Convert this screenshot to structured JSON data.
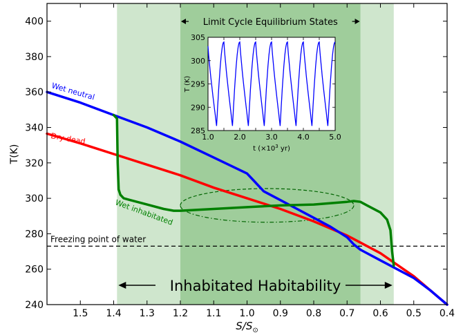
{
  "chart_data": [
    {
      "type": "line",
      "xlabel": "S/S",
      "xlabel_subscript": "⊙",
      "ylabel": "T(K)",
      "xlim": [
        1.6,
        0.4
      ],
      "ylim": [
        240,
        410
      ],
      "x_reversed": true,
      "xticks": [
        1.5,
        1.4,
        1.3,
        1.2,
        1.1,
        1.0,
        0.9,
        0.8,
        0.7,
        0.6,
        0.5,
        0.4
      ],
      "xtick_labels": [
        "1.5",
        "1.4",
        "1.3",
        "1.2",
        "1.1",
        "1.0",
        "0.9",
        "0.8",
        "0.7",
        "0.6",
        "0.5",
        "0.4"
      ],
      "yticks": [
        240,
        260,
        280,
        300,
        320,
        340,
        360,
        380,
        400
      ],
      "ytick_labels": [
        "240",
        "260",
        "280",
        "300",
        "320",
        "340",
        "360",
        "380",
        "400"
      ],
      "grid": false,
      "regions": [
        {
          "from": 1.39,
          "to": 0.56,
          "color": "#cfe6cd"
        },
        {
          "from": 1.2,
          "to": 0.66,
          "color": "#9fcd9b"
        }
      ],
      "series": [
        {
          "name": "Wet neutral",
          "color": "#0000ff",
          "x": [
            1.6,
            1.5,
            1.4,
            1.3,
            1.2,
            1.1,
            1.0,
            0.98,
            0.95,
            0.9,
            0.85,
            0.8,
            0.75,
            0.7,
            0.68,
            0.66,
            0.6,
            0.55,
            0.5,
            0.45,
            0.4
          ],
          "y": [
            360,
            354,
            347,
            340,
            332,
            323,
            314,
            310,
            304,
            299,
            294,
            289,
            284,
            278,
            274,
            271,
            265,
            260,
            255,
            248,
            240
          ]
        },
        {
          "name": "Dry dead",
          "color": "#ff0000",
          "x": [
            1.6,
            1.5,
            1.4,
            1.3,
            1.2,
            1.1,
            1.0,
            0.9,
            0.8,
            0.7,
            0.6,
            0.5,
            0.4
          ],
          "y": [
            336.5,
            331,
            325,
            319,
            313,
            306,
            300,
            294,
            287,
            279,
            269,
            256,
            240
          ]
        },
        {
          "name": "Wet inhabitated",
          "color": "#008000",
          "x": [
            1.4,
            1.39,
            1.388,
            1.385,
            1.38,
            1.37,
            1.35,
            1.3,
            1.25,
            1.22,
            1.2,
            1.1,
            1.0,
            0.9,
            0.8,
            0.7,
            0.68,
            0.66,
            0.64,
            0.6,
            0.58,
            0.57,
            0.565,
            0.56
          ],
          "y": [
            347,
            345,
            320,
            305,
            302,
            300,
            299,
            296.5,
            294,
            293,
            293,
            294,
            295,
            296,
            296.5,
            298,
            298.5,
            298,
            296,
            292,
            288,
            282,
            270,
            262
          ]
        }
      ],
      "limit_cycle_ellipse": {
        "x_center": 0.94,
        "x_half_width": 0.26,
        "y_top": 305.5,
        "y_bottom": 286.5
      },
      "freezing_line": {
        "y": 273,
        "label": "Freezing point of water"
      },
      "annotations": {
        "top": "Limit Cycle Equilibrium States",
        "bottom": "Inhabitated Habitability"
      },
      "inset": {
        "type": "line",
        "xlabel": "t (×10",
        "xlabel_sup": "3",
        "xlabel_suffix": " yr)",
        "ylabel": "T (K)",
        "xlim": [
          1.0,
          5.0
        ],
        "ylim": [
          285,
          305
        ],
        "xticks": [
          1.0,
          1.5,
          2.0,
          2.5,
          3.0,
          3.5,
          4.0,
          4.5,
          5.0
        ],
        "xtick_labels": [
          "1.0",
          "1.5",
          "2.0",
          "2.5",
          "3.0",
          "3.5",
          "4.0",
          "4.5",
          "5.0"
        ],
        "yticks": [
          285,
          290,
          295,
          300,
          305
        ],
        "ytick_labels": [
          "285",
          "290",
          "295",
          "300",
          "305"
        ],
        "series_color": "#0000ff",
        "oscillation": {
          "t_min": [
            1.27,
            1.77,
            2.27,
            2.77,
            3.27,
            3.77,
            4.27,
            4.77
          ],
          "rise_time": 0.23,
          "T_min": 286,
          "T_max": 304
        }
      }
    }
  ]
}
